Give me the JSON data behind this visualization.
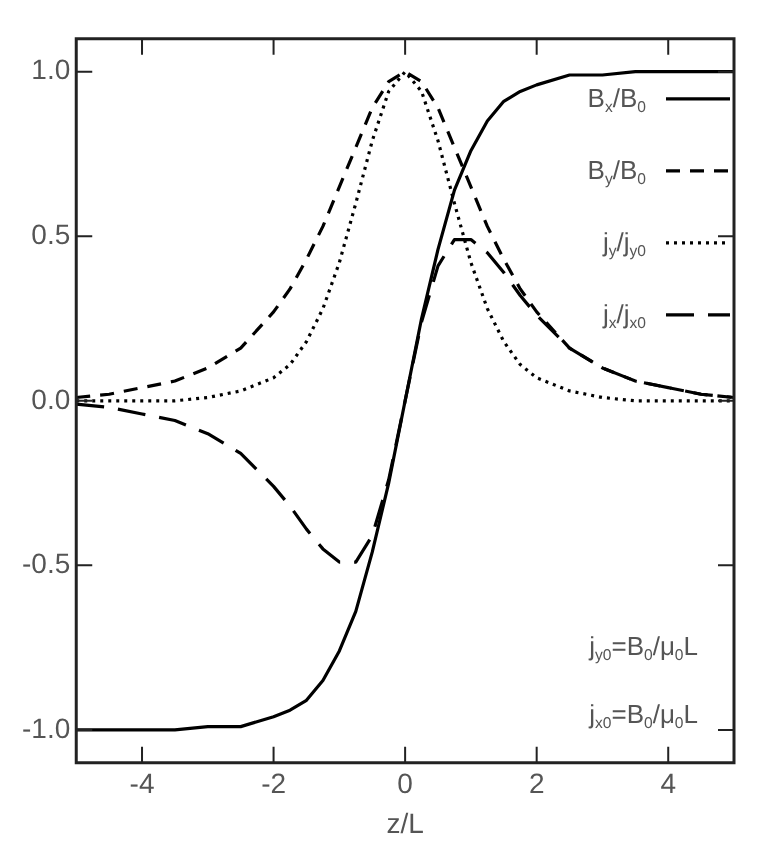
{
  "chart_data": {
    "type": "line",
    "xlabel": "z/L",
    "x": [
      -5,
      -4.5,
      -4,
      -3.5,
      -3,
      -2.5,
      -2,
      -1.75,
      -1.5,
      -1.25,
      -1,
      -0.75,
      -0.5,
      -0.25,
      0,
      0.25,
      0.5,
      0.75,
      1,
      1.25,
      1.5,
      1.75,
      2,
      2.5,
      3,
      3.5,
      4,
      4.5,
      5
    ],
    "series": [
      {
        "name": "B$_{x}$/B$_{0}$",
        "color": "#000000",
        "line_style": "solid",
        "values": [
          -1,
          -1,
          -1,
          -1,
          -0.99,
          -0.99,
          -0.96,
          -0.94,
          -0.91,
          -0.85,
          -0.76,
          -0.64,
          -0.46,
          -0.25,
          0,
          0.25,
          0.46,
          0.64,
          0.76,
          0.85,
          0.91,
          0.94,
          0.96,
          0.99,
          0.99,
          1,
          1,
          1,
          1
        ]
      },
      {
        "name": "B$_{y}$/B$_{0}$",
        "color": "#000000",
        "line_style": "dashed",
        "values": [
          0.01,
          0.02,
          0.04,
          0.06,
          0.1,
          0.16,
          0.27,
          0.34,
          0.43,
          0.53,
          0.65,
          0.77,
          0.89,
          0.97,
          1,
          0.97,
          0.89,
          0.77,
          0.65,
          0.53,
          0.43,
          0.34,
          0.27,
          0.16,
          0.1,
          0.06,
          0.04,
          0.02,
          0.01
        ]
      },
      {
        "name": "j$_{y}$/j$_{y0}$",
        "color": "#000000",
        "line_style": "dotted",
        "values": [
          0,
          0,
          0,
          0,
          0.01,
          0.03,
          0.07,
          0.11,
          0.18,
          0.28,
          0.42,
          0.6,
          0.79,
          0.94,
          1,
          0.94,
          0.79,
          0.6,
          0.42,
          0.28,
          0.18,
          0.11,
          0.07,
          0.03,
          0.01,
          0,
          0,
          0,
          0
        ]
      },
      {
        "name": "j$_{x}$/j$_{x0}$",
        "color": "#000000",
        "line_style": "longdash",
        "values": [
          -0.01,
          -0.02,
          -0.04,
          -0.06,
          -0.1,
          -0.16,
          -0.26,
          -0.32,
          -0.39,
          -0.45,
          -0.49,
          -0.49,
          -0.41,
          -0.24,
          0,
          0.24,
          0.41,
          0.49,
          0.49,
          0.45,
          0.39,
          0.32,
          0.26,
          0.16,
          0.1,
          0.06,
          0.04,
          0.02,
          0.01
        ]
      }
    ],
    "xlim": [
      -5,
      5
    ],
    "xticks": [
      -4,
      -2,
      0,
      2,
      4
    ],
    "ylim": [
      -1.1,
      1.1
    ],
    "yticks": [
      {
        "value": -1,
        "label": "-1.0"
      },
      {
        "value": -0.5,
        "label": "-0.5"
      },
      {
        "value": 0,
        "label": "0.0"
      },
      {
        "value": 0.5,
        "label": "0.5"
      },
      {
        "value": 1,
        "label": "1.0"
      }
    ],
    "legend": "top right",
    "marker": "none",
    "annotations": [
      "j$_{y0}$=B$_{0}$/μ$_{0}$L",
      "j$_{x0}$=B$_{0}$/μ$_{0}$L"
    ]
  }
}
